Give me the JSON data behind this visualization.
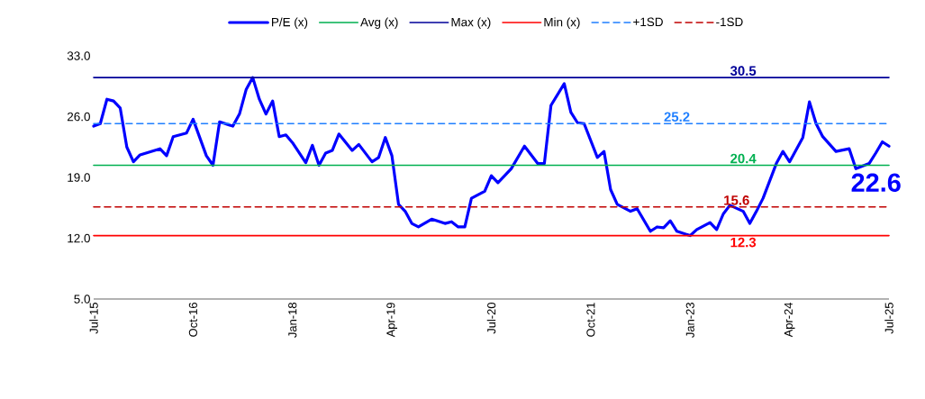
{
  "chart_data": {
    "type": "line",
    "x": [
      "2015-07",
      "2015-08",
      "2015-09",
      "2015-10",
      "2015-11",
      "2015-12",
      "2016-01",
      "2016-02",
      "2016-05",
      "2016-06",
      "2016-07",
      "2016-09",
      "2016-10",
      "2016-11",
      "2016-12",
      "2017-01",
      "2017-02",
      "2017-04",
      "2017-05",
      "2017-06",
      "2017-07",
      "2017-08",
      "2017-09",
      "2017-10",
      "2017-11",
      "2017-12",
      "2018-01",
      "2018-03",
      "2018-04",
      "2018-05",
      "2018-06",
      "2018-07",
      "2018-08",
      "2018-10",
      "2018-11",
      "2019-01",
      "2019-02",
      "2019-03",
      "2019-04",
      "2019-05",
      "2019-06",
      "2019-07",
      "2019-08",
      "2019-10",
      "2019-12",
      "2020-01",
      "2020-02",
      "2020-03",
      "2020-04",
      "2020-06",
      "2020-07",
      "2020-08",
      "2020-10",
      "2020-12",
      "2021-02",
      "2021-03",
      "2021-04",
      "2021-06",
      "2021-07",
      "2021-08",
      "2021-09",
      "2021-11",
      "2021-12",
      "2022-01",
      "2022-02",
      "2022-04",
      "2022-05",
      "2022-07",
      "2022-08",
      "2022-09",
      "2022-10",
      "2022-11",
      "2023-01",
      "2023-02",
      "2023-04",
      "2023-05",
      "2023-06",
      "2023-07",
      "2023-09",
      "2023-10",
      "2023-11",
      "2023-12",
      "2024-02",
      "2024-03",
      "2024-04",
      "2024-06",
      "2024-07",
      "2024-08",
      "2024-09",
      "2024-11",
      "2025-01",
      "2025-02",
      "2025-04",
      "2025-05",
      "2025-06",
      "2025-07"
    ],
    "series": [
      {
        "name": "P/E (x)",
        "color": "#0000ff",
        "values": [
          24.9,
          25.2,
          28.0,
          27.8,
          27.0,
          22.5,
          20.8,
          21.6,
          22.3,
          21.5,
          23.7,
          24.1,
          25.7,
          23.6,
          21.5,
          20.4,
          25.4,
          24.9,
          26.3,
          29.1,
          30.5,
          28.0,
          26.3,
          27.8,
          23.7,
          23.9,
          23.0,
          20.7,
          22.7,
          20.4,
          21.8,
          22.1,
          24.0,
          22.1,
          22.8,
          20.8,
          21.3,
          23.6,
          21.5,
          15.9,
          15.1,
          13.7,
          13.3,
          14.2,
          13.7,
          13.9,
          13.3,
          13.3,
          16.6,
          17.4,
          19.2,
          18.4,
          20.0,
          22.6,
          20.6,
          20.6,
          27.3,
          29.8,
          26.5,
          25.3,
          25.2,
          21.3,
          22.0,
          17.6,
          15.9,
          15.1,
          15.4,
          12.8,
          13.3,
          13.2,
          14.0,
          12.8,
          12.3,
          13.0,
          13.8,
          13.0,
          14.8,
          15.8,
          15.1,
          13.7,
          15.1,
          16.6,
          20.6,
          22.0,
          20.8,
          23.6,
          27.7,
          25.2,
          23.7,
          22.0,
          22.3,
          20.0,
          20.6,
          21.8,
          23.1,
          22.6
        ]
      },
      {
        "name": "Avg (x)",
        "color": "#00b050",
        "x": [
          "2015-07",
          "2025-07"
        ],
        "values": [
          20.4,
          20.4
        ]
      },
      {
        "name": "Max (x)",
        "color": "#000099",
        "x": [
          "2015-07",
          "2025-07"
        ],
        "values": [
          30.5,
          30.5
        ]
      },
      {
        "name": "Min (x)",
        "color": "#ff0000",
        "x": [
          "2015-07",
          "2025-07"
        ],
        "values": [
          12.3,
          12.3
        ]
      },
      {
        "name": "+1SD",
        "color": "#1f7fff",
        "line_style": "dashed",
        "x": [
          "2015-07",
          "2025-07"
        ],
        "values": [
          25.2,
          25.2
        ]
      },
      {
        "name": "-1SD",
        "color": "#c00000",
        "line_style": "dashed",
        "x": [
          "2015-07",
          "2025-07"
        ],
        "values": [
          15.6,
          15.6
        ]
      }
    ],
    "xlim": [
      "2015-07",
      "2025-07"
    ],
    "xticks": [
      {
        "value": "2015-07",
        "label": "Jul-15"
      },
      {
        "value": "2016-10",
        "label": "Oct-16"
      },
      {
        "value": "2018-01",
        "label": "Jan-18"
      },
      {
        "value": "2019-04",
        "label": "Apr-19"
      },
      {
        "value": "2020-07",
        "label": "Jul-20"
      },
      {
        "value": "2021-10",
        "label": "Oct-21"
      },
      {
        "value": "2023-01",
        "label": "Jan-23"
      },
      {
        "value": "2024-04",
        "label": "Apr-24"
      },
      {
        "value": "2025-07",
        "label": "Jul-25"
      }
    ],
    "ylim": [
      5,
      33
    ],
    "yticks": [
      {
        "value": 5,
        "label": "5.0"
      },
      {
        "value": 12,
        "label": "12.0"
      },
      {
        "value": 19,
        "label": "19.0"
      },
      {
        "value": 26,
        "label": "26.0"
      },
      {
        "value": 33,
        "label": "33.0"
      }
    ],
    "annotations": [
      {
        "text": "30.5",
        "x": "2023-09",
        "y": 30.5
      },
      {
        "text": "25.2",
        "x": "2022-11",
        "y": 25.2
      },
      {
        "text": "20.4",
        "x": "2023-09",
        "y": 20.4
      },
      {
        "text": "15.6",
        "x": "2023-08",
        "y": 15.6
      },
      {
        "text": "12.3",
        "x": "2023-09",
        "y": 12.3
      },
      {
        "text": "22.6",
        "x": "2025-07",
        "y": 22.6
      }
    ],
    "legend": "top",
    "grid": false
  }
}
